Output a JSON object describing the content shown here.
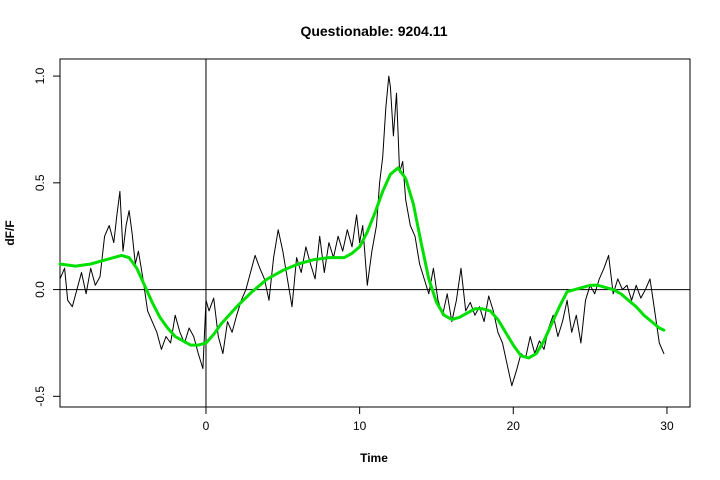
{
  "chart_data": {
    "type": "line",
    "title": "Questionable: 9204.11",
    "xlabel": "Time",
    "ylabel": "dF/F",
    "xlim": [
      -9.5,
      31.5
    ],
    "ylim": [
      -0.55,
      1.08
    ],
    "x_ticks": [
      0,
      10,
      20,
      30
    ],
    "x_tick_labels": [
      "0",
      "10",
      "20",
      "30"
    ],
    "y_ticks": [
      -0.5,
      0.0,
      0.5,
      1.0
    ],
    "y_tick_labels": [
      "-0.5",
      "0.0",
      "0.5",
      "1.0"
    ],
    "reference_lines": {
      "vertical_x": 0,
      "horizontal_y": 0
    },
    "grid": false,
    "legend": "none",
    "series": [
      {
        "kind": "raw",
        "color": "#000000",
        "x": [
          -9.5,
          -9.2,
          -9.0,
          -8.7,
          -8.4,
          -8.1,
          -7.8,
          -7.5,
          -7.2,
          -6.9,
          -6.6,
          -6.3,
          -6.0,
          -5.8,
          -5.6,
          -5.4,
          -5.2,
          -5.0,
          -4.8,
          -4.6,
          -4.4,
          -4.1,
          -3.8,
          -3.5,
          -3.2,
          -2.9,
          -2.6,
          -2.3,
          -2.0,
          -1.7,
          -1.4,
          -1.1,
          -0.8,
          -0.5,
          -0.2,
          0.0,
          0.2,
          0.5,
          0.8,
          1.1,
          1.4,
          1.7,
          2.0,
          2.3,
          2.6,
          2.9,
          3.2,
          3.5,
          3.8,
          4.1,
          4.4,
          4.7,
          5.0,
          5.3,
          5.6,
          5.9,
          6.2,
          6.5,
          6.8,
          7.1,
          7.4,
          7.7,
          8.0,
          8.3,
          8.6,
          8.9,
          9.2,
          9.5,
          9.8,
          10.0,
          10.2,
          10.5,
          10.8,
          11.1,
          11.3,
          11.5,
          11.7,
          11.9,
          12.0,
          12.2,
          12.4,
          12.6,
          12.8,
          13.0,
          13.3,
          13.6,
          13.9,
          14.2,
          14.5,
          14.8,
          15.1,
          15.4,
          15.7,
          16.0,
          16.3,
          16.6,
          16.9,
          17.2,
          17.5,
          17.8,
          18.1,
          18.4,
          18.7,
          19.0,
          19.3,
          19.6,
          19.9,
          20.2,
          20.5,
          20.8,
          21.1,
          21.4,
          21.7,
          22.0,
          22.3,
          22.6,
          22.9,
          23.2,
          23.5,
          23.8,
          24.1,
          24.4,
          24.7,
          25.0,
          25.3,
          25.6,
          25.9,
          26.2,
          26.5,
          26.8,
          27.1,
          27.4,
          27.7,
          28.0,
          28.3,
          28.6,
          28.9,
          29.2,
          29.5,
          29.8
        ],
        "y": [
          0.05,
          0.1,
          -0.05,
          -0.08,
          0.0,
          0.08,
          -0.02,
          0.1,
          0.02,
          0.06,
          0.25,
          0.3,
          0.22,
          0.35,
          0.46,
          0.18,
          0.3,
          0.37,
          0.26,
          0.12,
          0.18,
          0.05,
          -0.1,
          -0.15,
          -0.2,
          -0.28,
          -0.22,
          -0.25,
          -0.12,
          -0.2,
          -0.25,
          -0.18,
          -0.22,
          -0.3,
          -0.37,
          -0.05,
          -0.1,
          -0.04,
          -0.22,
          -0.3,
          -0.15,
          -0.2,
          -0.12,
          -0.05,
          0.0,
          0.08,
          0.16,
          0.1,
          0.05,
          -0.05,
          0.15,
          0.28,
          0.18,
          0.05,
          -0.08,
          0.15,
          0.08,
          0.2,
          0.12,
          0.05,
          0.25,
          0.08,
          0.22,
          0.15,
          0.25,
          0.18,
          0.28,
          0.2,
          0.35,
          0.22,
          0.3,
          0.02,
          0.18,
          0.3,
          0.5,
          0.62,
          0.85,
          1.0,
          0.95,
          0.72,
          0.92,
          0.55,
          0.6,
          0.42,
          0.3,
          0.25,
          0.12,
          0.05,
          -0.02,
          0.1,
          -0.05,
          -0.12,
          -0.02,
          -0.15,
          -0.05,
          0.1,
          -0.1,
          -0.06,
          -0.12,
          -0.08,
          -0.15,
          -0.03,
          -0.1,
          -0.2,
          -0.25,
          -0.35,
          -0.45,
          -0.38,
          -0.3,
          -0.32,
          -0.22,
          -0.3,
          -0.24,
          -0.28,
          -0.18,
          -0.12,
          -0.22,
          -0.15,
          -0.05,
          -0.2,
          -0.12,
          -0.25,
          -0.05,
          0.02,
          -0.02,
          0.05,
          0.1,
          0.16,
          -0.02,
          0.05,
          0.0,
          0.02,
          -0.05,
          0.02,
          -0.04,
          0.0,
          0.05,
          -0.1,
          -0.25,
          -0.3
        ]
      },
      {
        "kind": "smooth",
        "color": "#00e000",
        "x": [
          -9.5,
          -8.5,
          -7.5,
          -6.5,
          -5.5,
          -5.0,
          -4.5,
          -4.0,
          -3.5,
          -3.0,
          -2.5,
          -2.0,
          -1.5,
          -1.0,
          -0.5,
          0.0,
          0.5,
          1.0,
          2.0,
          3.0,
          4.0,
          5.0,
          6.0,
          7.0,
          8.0,
          9.0,
          9.5,
          10.0,
          10.5,
          11.0,
          11.5,
          12.0,
          12.5,
          13.0,
          13.5,
          14.0,
          14.5,
          15.0,
          15.5,
          16.0,
          16.5,
          17.0,
          17.5,
          18.0,
          18.5,
          19.0,
          19.5,
          20.0,
          20.5,
          21.0,
          21.5,
          22.0,
          22.5,
          23.0,
          23.5,
          24.0,
          24.5,
          25.0,
          25.5,
          26.0,
          26.5,
          27.0,
          27.5,
          28.0,
          28.5,
          29.0,
          29.5,
          29.8
        ],
        "y": [
          0.12,
          0.11,
          0.12,
          0.14,
          0.16,
          0.15,
          0.1,
          0.02,
          -0.06,
          -0.13,
          -0.18,
          -0.22,
          -0.24,
          -0.26,
          -0.26,
          -0.25,
          -0.21,
          -0.16,
          -0.08,
          -0.01,
          0.05,
          0.09,
          0.12,
          0.14,
          0.15,
          0.15,
          0.17,
          0.2,
          0.27,
          0.36,
          0.46,
          0.54,
          0.57,
          0.52,
          0.4,
          0.22,
          0.05,
          -0.06,
          -0.12,
          -0.14,
          -0.13,
          -0.11,
          -0.09,
          -0.09,
          -0.1,
          -0.14,
          -0.2,
          -0.26,
          -0.31,
          -0.32,
          -0.3,
          -0.24,
          -0.16,
          -0.08,
          -0.01,
          0.0,
          0.01,
          0.02,
          0.02,
          0.01,
          0.0,
          -0.02,
          -0.05,
          -0.08,
          -0.12,
          -0.15,
          -0.18,
          -0.19
        ]
      }
    ]
  }
}
